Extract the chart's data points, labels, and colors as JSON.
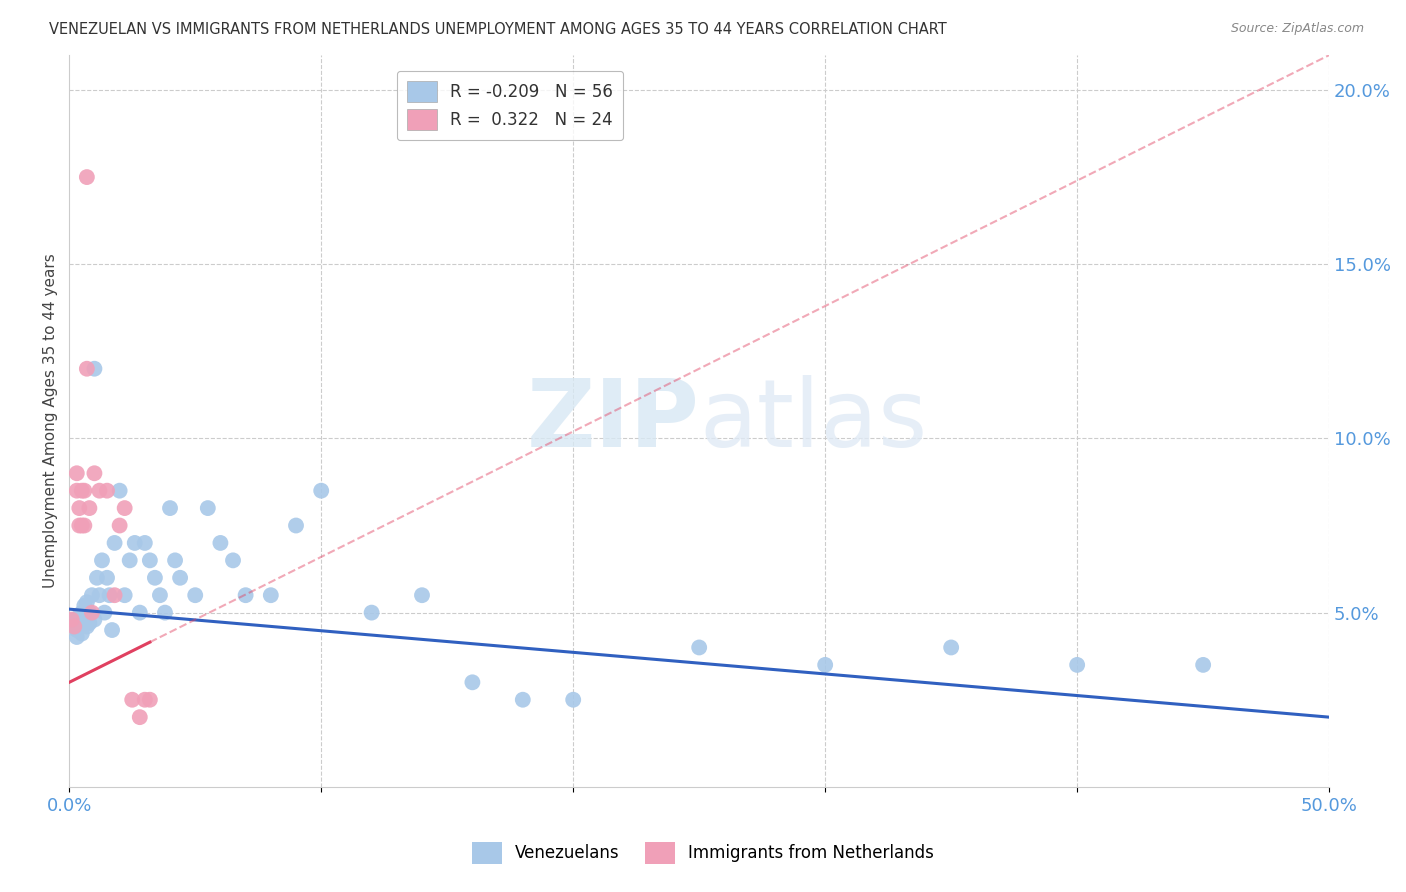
{
  "title": "VENEZUELAN VS IMMIGRANTS FROM NETHERLANDS UNEMPLOYMENT AMONG AGES 35 TO 44 YEARS CORRELATION CHART",
  "source": "Source: ZipAtlas.com",
  "ylabel": "Unemployment Among Ages 35 to 44 years",
  "xlim": [
    0.0,
    0.5
  ],
  "ylim": [
    0.0,
    0.21
  ],
  "blue_R": -0.209,
  "blue_N": 56,
  "pink_R": 0.322,
  "pink_N": 24,
  "blue_color": "#a8c8e8",
  "pink_color": "#f0a0b8",
  "blue_line_color": "#3060c0",
  "pink_line_color": "#e04060",
  "watermark_zip": "ZIP",
  "watermark_atlas": "atlas",
  "legend_label_blue": "Venezuelans",
  "legend_label_pink": "Immigrants from Netherlands",
  "blue_scatter_x": [
    0.001,
    0.002,
    0.003,
    0.003,
    0.004,
    0.004,
    0.005,
    0.005,
    0.006,
    0.006,
    0.007,
    0.007,
    0.008,
    0.008,
    0.009,
    0.01,
    0.01,
    0.011,
    0.012,
    0.013,
    0.014,
    0.015,
    0.016,
    0.017,
    0.018,
    0.02,
    0.022,
    0.024,
    0.026,
    0.028,
    0.03,
    0.032,
    0.034,
    0.036,
    0.038,
    0.04,
    0.042,
    0.044,
    0.05,
    0.055,
    0.06,
    0.065,
    0.07,
    0.08,
    0.09,
    0.1,
    0.12,
    0.14,
    0.16,
    0.18,
    0.2,
    0.25,
    0.3,
    0.35,
    0.4,
    0.45
  ],
  "blue_scatter_y": [
    0.047,
    0.048,
    0.045,
    0.043,
    0.046,
    0.049,
    0.044,
    0.05,
    0.048,
    0.052,
    0.046,
    0.053,
    0.05,
    0.047,
    0.055,
    0.048,
    0.12,
    0.06,
    0.055,
    0.065,
    0.05,
    0.06,
    0.055,
    0.045,
    0.07,
    0.085,
    0.055,
    0.065,
    0.07,
    0.05,
    0.07,
    0.065,
    0.06,
    0.055,
    0.05,
    0.08,
    0.065,
    0.06,
    0.055,
    0.08,
    0.07,
    0.065,
    0.055,
    0.055,
    0.075,
    0.085,
    0.05,
    0.055,
    0.03,
    0.025,
    0.025,
    0.04,
    0.035,
    0.04,
    0.035,
    0.035
  ],
  "pink_scatter_x": [
    0.001,
    0.002,
    0.003,
    0.003,
    0.004,
    0.004,
    0.005,
    0.005,
    0.006,
    0.006,
    0.007,
    0.007,
    0.008,
    0.009,
    0.01,
    0.012,
    0.015,
    0.018,
    0.02,
    0.022,
    0.025,
    0.028,
    0.03,
    0.032
  ],
  "pink_scatter_y": [
    0.048,
    0.046,
    0.09,
    0.085,
    0.08,
    0.075,
    0.075,
    0.085,
    0.075,
    0.085,
    0.12,
    0.175,
    0.08,
    0.05,
    0.09,
    0.085,
    0.085,
    0.055,
    0.075,
    0.08,
    0.025,
    0.02,
    0.025,
    0.025
  ],
  "blue_line_x0": 0.0,
  "blue_line_y0": 0.051,
  "blue_line_x1": 0.5,
  "blue_line_y1": 0.02,
  "pink_line_x0": 0.0,
  "pink_line_y0": 0.03,
  "pink_line_x1": 0.5,
  "pink_line_y1": 0.21
}
